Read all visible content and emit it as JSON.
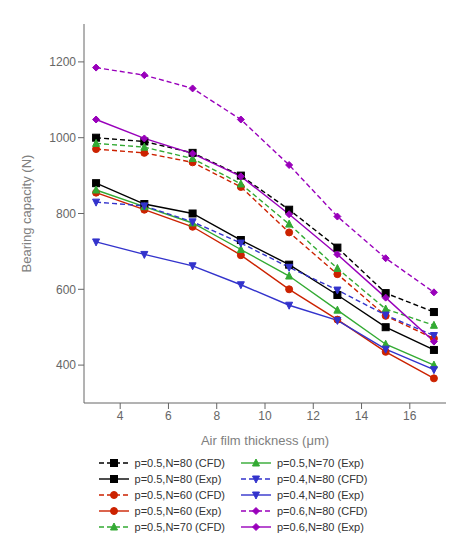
{
  "chart_data": {
    "type": "line",
    "x": [
      3,
      5,
      7,
      9,
      11,
      13,
      15,
      17
    ],
    "series": [
      {
        "name": "p=0.5,N=80 (CFD)",
        "color": "#000000",
        "line_style": "dashed",
        "marker": "square",
        "values": [
          1000,
          990,
          960,
          900,
          810,
          710,
          590,
          540
        ]
      },
      {
        "name": "p=0.5,N=80 (Exp)",
        "color": "#000000",
        "line_style": "solid",
        "marker": "square",
        "values": [
          880,
          825,
          800,
          730,
          665,
          585,
          500,
          440
        ]
      },
      {
        "name": "p=0.5,N=60 (CFD)",
        "color": "#cc2200",
        "line_style": "dashed",
        "marker": "circle",
        "values": [
          970,
          960,
          935,
          870,
          750,
          640,
          530,
          470
        ]
      },
      {
        "name": "p=0.5,N=60 (Exp)",
        "color": "#cc2200",
        "line_style": "solid",
        "marker": "circle",
        "values": [
          855,
          810,
          765,
          690,
          600,
          520,
          435,
          365
        ]
      },
      {
        "name": "p=0.5,N=70 (CFD)",
        "color": "#33aa33",
        "line_style": "dashed",
        "marker": "triangle-up",
        "values": [
          985,
          975,
          945,
          878,
          772,
          655,
          548,
          505
        ]
      },
      {
        "name": "p=0.5,N=70 (Exp)",
        "color": "#33aa33",
        "line_style": "solid",
        "marker": "triangle-up",
        "values": [
          862,
          818,
          775,
          705,
          635,
          545,
          455,
          400
        ]
      },
      {
        "name": "p=0.4,N=80 (CFD)",
        "color": "#3333cc",
        "line_style": "dashed",
        "marker": "triangle-down",
        "values": [
          830,
          820,
          778,
          722,
          658,
          598,
          532,
          478
        ]
      },
      {
        "name": "p=0.4,N=80 (Exp)",
        "color": "#3333cc",
        "line_style": "solid",
        "marker": "triangle-down",
        "values": [
          725,
          692,
          662,
          612,
          558,
          518,
          442,
          388
        ]
      },
      {
        "name": "p=0.6,N=80 (CFD)",
        "color": "#9900bb",
        "line_style": "dashed",
        "marker": "diamond",
        "values": [
          1185,
          1165,
          1130,
          1048,
          928,
          792,
          682,
          592
        ]
      },
      {
        "name": "p=0.6,N=80 (Exp)",
        "color": "#9900bb",
        "line_style": "solid",
        "marker": "diamond",
        "values": [
          1048,
          998,
          958,
          898,
          798,
          692,
          578,
          462
        ]
      }
    ],
    "xlabel": "Air film thickness (μm)",
    "ylabel": "Bearing capacity (N)",
    "xlim": [
      2.5,
      17.5
    ],
    "ylim": [
      300,
      1300
    ],
    "xticks": [
      4,
      6,
      8,
      10,
      12,
      14,
      16
    ],
    "yticks": [
      400,
      600,
      800,
      1000,
      1200
    ],
    "grid": false,
    "legend": "bottom"
  }
}
